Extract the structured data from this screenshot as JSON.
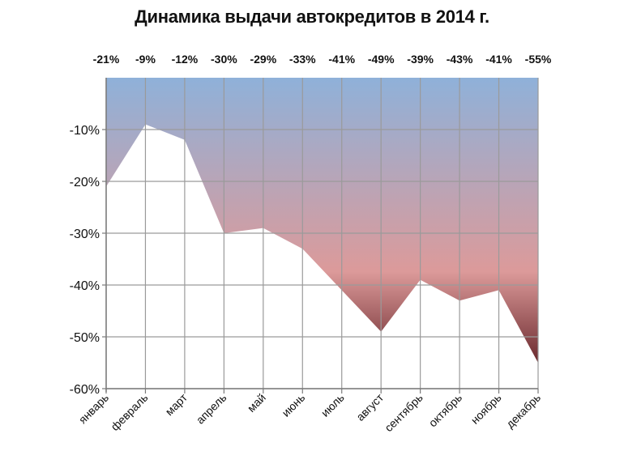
{
  "chart_data": {
    "type": "area",
    "title": "Динамика выдачи автокредитов в 2014 г.",
    "categories": [
      "январь",
      "февраль",
      "март",
      "апрель",
      "май",
      "июнь",
      "июль",
      "август",
      "сентябрь",
      "октябрь",
      "ноябрь",
      "декабрь"
    ],
    "values": [
      -21,
      -9,
      -12,
      -30,
      -29,
      -33,
      -41,
      -49,
      -39,
      -43,
      -41,
      -55
    ],
    "value_labels": [
      "-21%",
      "-9%",
      "-12%",
      "-30%",
      "-29%",
      "-33%",
      "-41%",
      "-49%",
      "-39%",
      "-43%",
      "-41%",
      "-55%"
    ],
    "y_ticks": [
      -10,
      -20,
      -30,
      -40,
      -50,
      -60
    ],
    "y_tick_labels": [
      "-10%",
      "-20%",
      "-30%",
      "-40%",
      "-50%",
      "-60%"
    ],
    "ylim": [
      -60,
      0
    ],
    "xlabel": "",
    "ylabel": "",
    "grid": true,
    "gradient_colors": [
      "#8fb1d9",
      "#dc9a9a",
      "#6b2a2e"
    ]
  }
}
